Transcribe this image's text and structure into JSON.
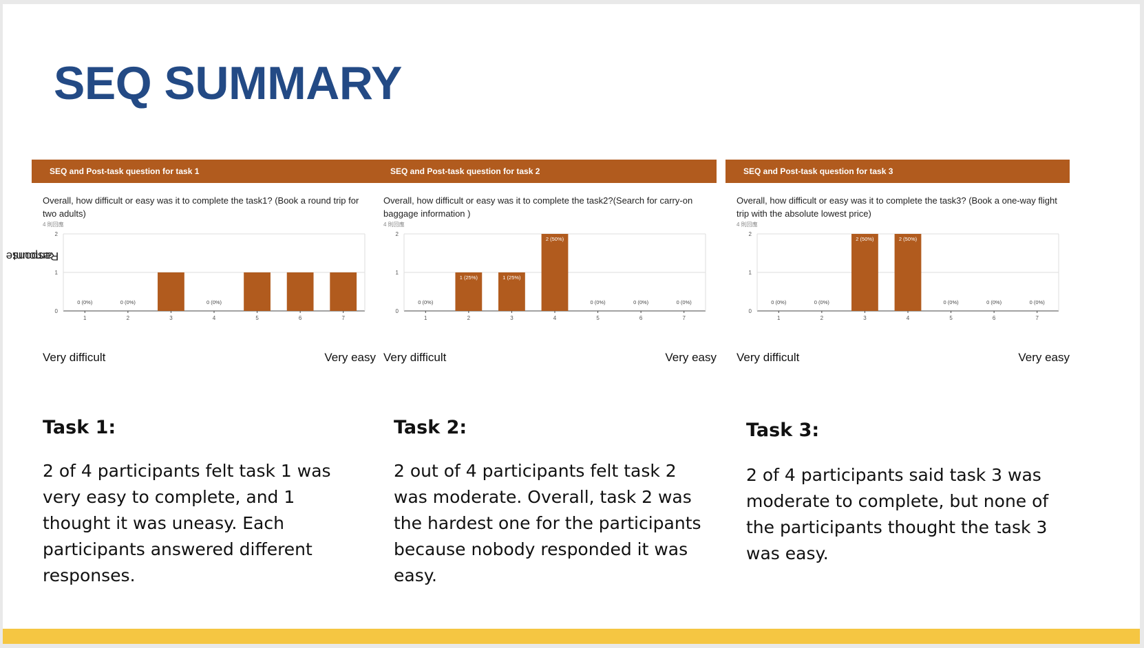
{
  "slide": {
    "title": "SEQ SUMMARY",
    "y_axis_label_line1": "Response",
    "y_axis_label_line2": "amount",
    "footer_color": "#f5c642",
    "title_color": "#234a85",
    "header_color": "#b15b1e",
    "bar_color": "#b15b1e"
  },
  "panels": [
    {
      "header": "SEQ and Post-task question for task 1",
      "question": "Overall, how difficult or easy was it to complete the task1? (Book a round trip for two adults)",
      "response_count": "4 則回應",
      "scale_left": "Very difficult",
      "scale_right": "Very easy",
      "task_heading": "Task 1:",
      "task_summary": "2 of 4 participants felt task 1 was very easy to complete, and 1 thought it was uneasy. Each participants answered different responses."
    },
    {
      "header": "SEQ and Post-task question for task 2",
      "question": "Overall, how difficult or easy was it to complete the task2?(Search for carry-on baggage information )",
      "response_count": "4 則回應",
      "scale_left": "Very difficult",
      "scale_right": "Very easy",
      "task_heading": "Task 2:",
      "task_summary": "2 out of 4 participants felt task 2 was moderate. Overall, task 2 was the hardest one for the participants because nobody responded it was easy."
    },
    {
      "header": "SEQ and Post-task question for task 3",
      "question": "Overall, how difficult or easy was it to complete the task3? (Book a one-way flight trip with the absolute lowest price)",
      "response_count": "4 則回應",
      "scale_left": "Very difficult",
      "scale_right": "Very easy",
      "task_heading": "Task 3:",
      "task_summary": "2 of 4 participants said task 3 was moderate to complete, but none of the participants thought the task 3 was easy."
    }
  ],
  "chart_data": [
    {
      "type": "bar",
      "categories": [
        "1",
        "2",
        "3",
        "4",
        "5",
        "6",
        "7"
      ],
      "values": [
        0,
        0,
        1,
        0,
        1,
        1,
        1
      ],
      "data_labels": [
        "0 (0%)",
        "0 (0%)",
        "",
        "0 (0%)",
        "",
        "",
        ""
      ],
      "yticks": [
        "0",
        "1",
        "2"
      ],
      "ylim": [
        0,
        2
      ],
      "grid": true
    },
    {
      "type": "bar",
      "categories": [
        "1",
        "2",
        "3",
        "4",
        "5",
        "6",
        "7"
      ],
      "values": [
        0,
        1,
        1,
        2,
        0,
        0,
        0
      ],
      "data_labels": [
        "0 (0%)",
        "1 (25%)",
        "1 (25%)",
        "2 (50%)",
        "0 (0%)",
        "0 (0%)",
        "0 (0%)"
      ],
      "yticks": [
        "0",
        "1",
        "2"
      ],
      "ylim": [
        0,
        2
      ],
      "grid": true
    },
    {
      "type": "bar",
      "categories": [
        "1",
        "2",
        "3",
        "4",
        "5",
        "6",
        "7"
      ],
      "values": [
        0,
        0,
        2,
        2,
        0,
        0,
        0
      ],
      "data_labels": [
        "0 (0%)",
        "0 (0%)",
        "2 (50%)",
        "2 (50%)",
        "0 (0%)",
        "0 (0%)",
        "0 (0%)"
      ],
      "yticks": [
        "0",
        "1",
        "2"
      ],
      "ylim": [
        0,
        2
      ],
      "grid": true
    }
  ]
}
